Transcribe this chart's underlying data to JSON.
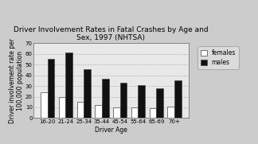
{
  "title": "Driver Involvement Rates in Fatal Crashes by Age and\nSex, 1997 (NHTSA)",
  "xlabel": "Driver Age",
  "ylabel": "Driver involvement rate per\n100,000 population",
  "categories": [
    "16-20",
    "21-24",
    "25-34",
    "35-44",
    "45-54",
    "55-64",
    "65-69",
    "70+"
  ],
  "females": [
    24,
    20,
    15,
    12,
    10,
    10,
    9,
    11
  ],
  "males": [
    55,
    61,
    46,
    37,
    33,
    31,
    28,
    35
  ],
  "female_color": "#ffffff",
  "male_color": "#111111",
  "bar_edge_color": "#444444",
  "ylim": [
    0,
    70
  ],
  "yticks": [
    0,
    10,
    20,
    30,
    40,
    50,
    60,
    70
  ],
  "legend_labels": [
    "females",
    "males"
  ],
  "title_fontsize": 6.5,
  "axis_label_fontsize": 5.5,
  "tick_fontsize": 5.0,
  "legend_fontsize": 5.5,
  "fig_bg_color": "#cccccc",
  "plot_bg_color": "#e8e8e8"
}
